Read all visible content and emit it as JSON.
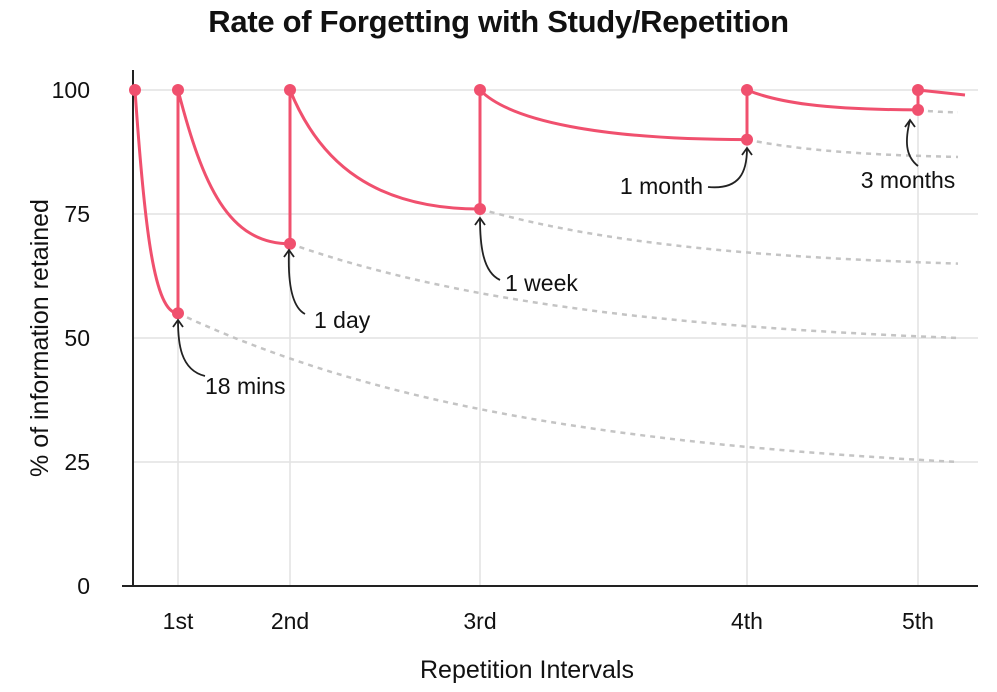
{
  "chart_data": {
    "type": "line",
    "title": "Rate of Forgetting with Study/Repetition",
    "xlabel": "Repetition Intervals",
    "ylabel": "% of information retained",
    "ylim": [
      0,
      100
    ],
    "yticks": [
      0,
      25,
      50,
      75,
      100
    ],
    "categories": [
      "1st",
      "2nd",
      "3rd",
      "4th",
      "5th"
    ],
    "grid": true,
    "colors": {
      "curve": "#f0506e",
      "decay": "#c4c4c4",
      "grid": "#e2e2e2",
      "axis": "#222222"
    },
    "series": [
      {
        "values": [
          {
            "x": "start",
            "y": 100
          },
          {
            "x": "1st",
            "y": 55
          },
          {
            "x": "1st",
            "y": 100
          },
          {
            "x": "2nd",
            "y": 69
          },
          {
            "x": "2nd",
            "y": 100
          },
          {
            "x": "3rd",
            "y": 76
          },
          {
            "x": "3rd",
            "y": 100
          },
          {
            "x": "4th",
            "y": 90
          },
          {
            "x": "4th",
            "y": 100
          },
          {
            "x": "5th",
            "y": 96
          },
          {
            "x": "5th",
            "y": 100
          },
          {
            "x": "end",
            "y": 99
          }
        ]
      }
    ],
    "decay_curves": [
      {
        "from": "1st",
        "y_start": 55,
        "y_end": 25
      },
      {
        "from": "2nd",
        "y_start": 69,
        "y_end": 50
      },
      {
        "from": "3rd",
        "y_start": 76,
        "y_end": 65
      },
      {
        "from": "4th",
        "y_start": 90,
        "y_end": 86.5
      },
      {
        "from": "5th",
        "y_start": 96,
        "y_end": 95.5
      }
    ],
    "annotations": [
      {
        "text": "18 mins",
        "x": "1st",
        "y": 55
      },
      {
        "text": "1 day",
        "x": "2nd",
        "y": 69
      },
      {
        "text": "1 week",
        "x": "3rd",
        "y": 76
      },
      {
        "text": "1 month",
        "x": "4th",
        "y": 90
      },
      {
        "text": "3 months",
        "x": "5th",
        "y": 96
      }
    ]
  }
}
